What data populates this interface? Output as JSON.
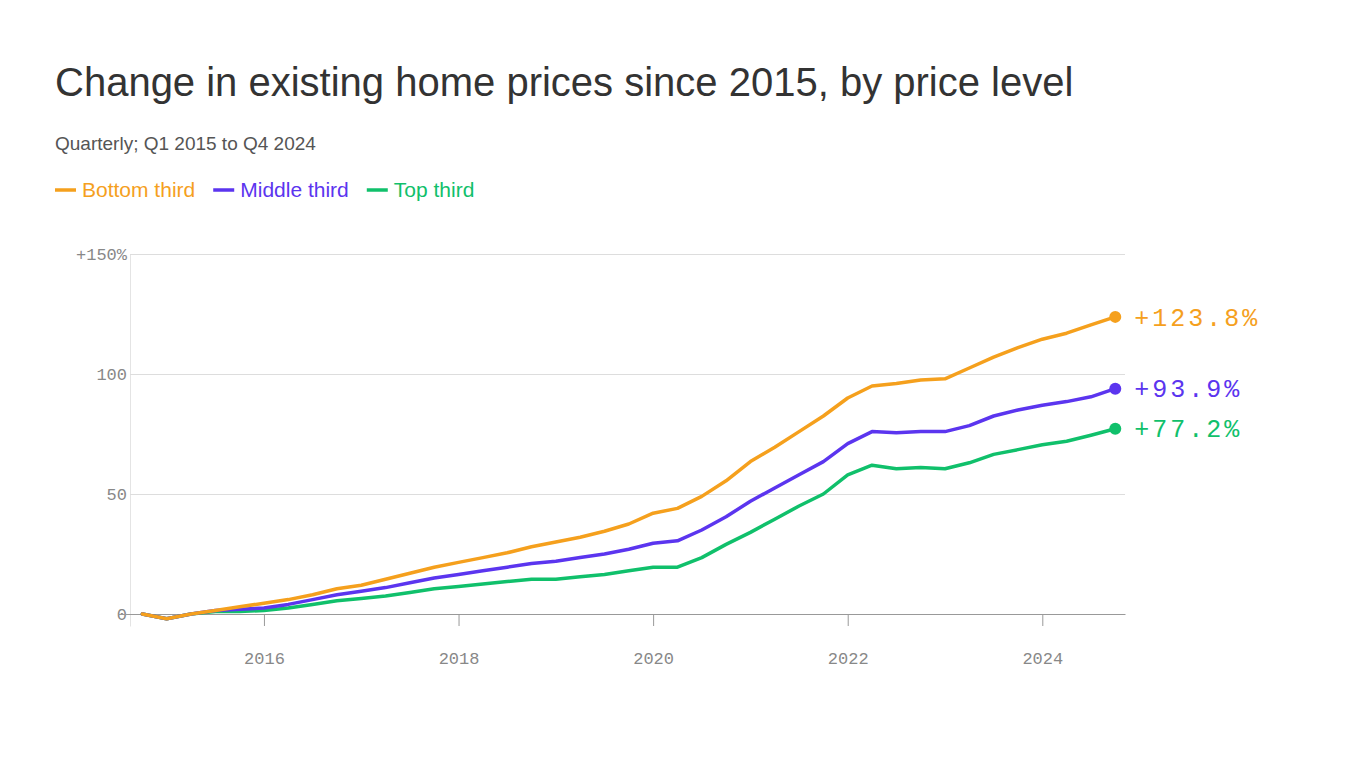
{
  "chart_data": {
    "type": "line",
    "title": "Change in existing home prices since 2015, by price level",
    "subtitle": "Quarterly; Q1 2015 to Q4 2024",
    "x": [
      2014.75,
      2015,
      2015.25,
      2015.5,
      2015.75,
      2016,
      2016.25,
      2016.5,
      2016.75,
      2017,
      2017.25,
      2017.5,
      2017.75,
      2018,
      2018.25,
      2018.5,
      2018.75,
      2019,
      2019.25,
      2019.5,
      2019.75,
      2020,
      2020.25,
      2020.5,
      2020.75,
      2021,
      2021.25,
      2021.5,
      2021.75,
      2022,
      2022.25,
      2022.5,
      2022.75,
      2023,
      2023.25,
      2023.5,
      2023.75,
      2024,
      2024.25,
      2024.5,
      2024.75
    ],
    "series": [
      {
        "name": "Bottom third",
        "color": "#f5a01d",
        "values": [
          0,
          -2,
          0,
          1.5,
          3,
          4.5,
          6,
          8,
          10.5,
          12,
          14.5,
          17,
          19.5,
          21.5,
          23.5,
          25.5,
          28,
          30,
          32,
          34.5,
          37.5,
          42,
          44,
          49,
          55.5,
          63.5,
          69.5,
          76,
          82.5,
          90,
          95,
          96,
          97.5,
          98,
          102.5,
          107,
          111,
          114.5,
          117,
          120.5,
          123.8
        ],
        "value_labels": [
          null,
          null,
          null,
          null,
          null,
          null,
          null,
          null,
          null,
          null,
          null,
          null,
          null,
          null,
          null,
          null,
          null,
          null,
          null,
          null,
          null,
          null,
          null,
          null,
          null,
          null,
          null,
          null,
          null,
          null,
          null,
          null,
          null,
          null,
          null,
          null,
          null,
          null,
          null,
          null,
          "+123.8%"
        ]
      },
      {
        "name": "Middle third",
        "color": "#5b35ef",
        "values": [
          0,
          -2,
          0,
          1.5,
          2,
          2.5,
          4,
          6,
          8,
          9.5,
          11,
          13,
          15,
          16.5,
          18,
          19.5,
          21,
          22,
          23.5,
          25,
          27,
          29.5,
          30.5,
          35,
          40.5,
          47,
          52.5,
          58,
          63.5,
          71,
          76,
          75.5,
          76,
          76,
          78.5,
          82.5,
          85,
          87,
          88.5,
          90.5,
          93.9
        ],
        "value_labels": [
          null,
          null,
          null,
          null,
          null,
          null,
          null,
          null,
          null,
          null,
          null,
          null,
          null,
          null,
          null,
          null,
          null,
          null,
          null,
          null,
          null,
          null,
          null,
          null,
          null,
          null,
          null,
          null,
          null,
          null,
          null,
          null,
          null,
          null,
          null,
          null,
          null,
          null,
          null,
          null,
          "+93.9%"
        ]
      },
      {
        "name": "Top third",
        "color": "#10c06b",
        "values": [
          0,
          -2,
          0,
          1,
          1,
          1.5,
          2.5,
          4,
          5.5,
          6.5,
          7.5,
          9,
          10.5,
          11.5,
          12.5,
          13.5,
          14.5,
          14.5,
          15.5,
          16.5,
          18,
          19.5,
          19.5,
          23.5,
          29,
          34,
          39.5,
          45,
          50,
          58,
          62,
          60.5,
          61,
          60.5,
          63,
          66.5,
          68.5,
          70.5,
          72,
          74.5,
          77.2
        ],
        "value_labels": [
          null,
          null,
          null,
          null,
          null,
          null,
          null,
          null,
          null,
          null,
          null,
          null,
          null,
          null,
          null,
          null,
          null,
          null,
          null,
          null,
          null,
          null,
          null,
          null,
          null,
          null,
          null,
          null,
          null,
          null,
          null,
          null,
          null,
          null,
          null,
          null,
          null,
          null,
          null,
          null,
          "+77.2%"
        ]
      }
    ],
    "xlim": [
      2014.5,
      2024.85
    ],
    "xticks": [
      2016,
      2018,
      2020,
      2022,
      2024
    ],
    "ylim": [
      -5,
      150
    ],
    "yticks": [
      0,
      50,
      100,
      {
        "value": 150,
        "label": "+150%"
      }
    ],
    "grid": true,
    "legend": "top-left",
    "data_labels": true
  }
}
